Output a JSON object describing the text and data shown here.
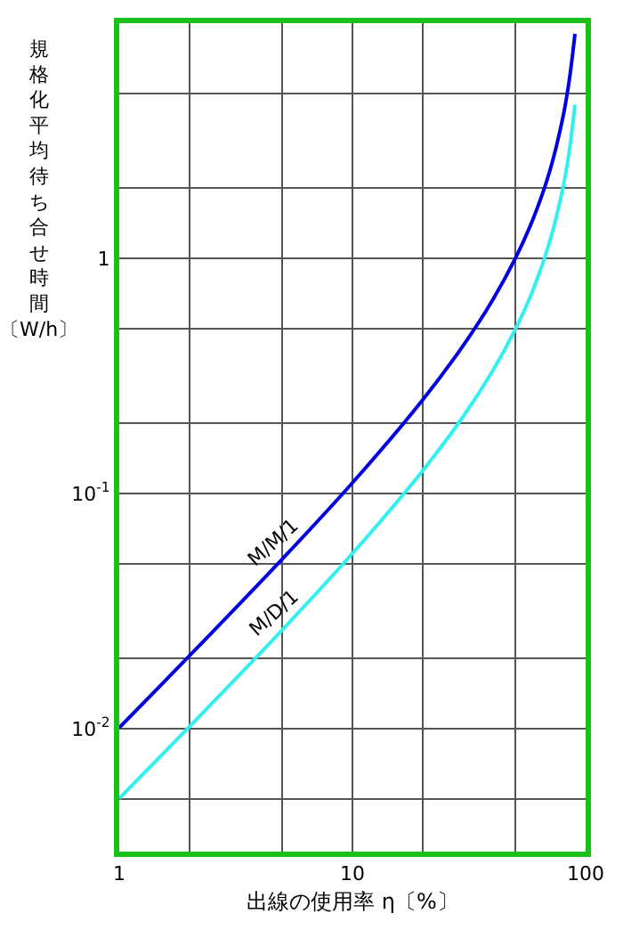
{
  "chart_data": {
    "type": "line",
    "xlabel": "出線の使用率 η〔%〕",
    "ylabel": "規格化平均待ち合せ時間〔W/h〕",
    "x": [
      1,
      2,
      5,
      10,
      20,
      30,
      40,
      50,
      60,
      70,
      80,
      85,
      90
    ],
    "series": [
      {
        "name": "M/M/1",
        "color": "#0000e0",
        "values": [
          0.0101,
          0.0204,
          0.0526,
          0.111,
          0.25,
          0.429,
          0.667,
          1.0,
          1.5,
          2.33,
          4.0,
          5.67,
          9.0
        ]
      },
      {
        "name": "M/D/1",
        "color": "#33f0f0",
        "values": [
          0.00505,
          0.0102,
          0.0263,
          0.0556,
          0.125,
          0.214,
          0.333,
          0.5,
          0.75,
          1.17,
          2.0,
          2.83,
          4.5
        ]
      }
    ],
    "log": "xy",
    "xlim": [
      1,
      100
    ],
    "ylim": [
      0.003,
      10
    ],
    "xticks": [
      1,
      {
        "value": 2,
        "label": null
      },
      {
        "value": 5,
        "label": null
      },
      10,
      {
        "value": 20,
        "label": null
      },
      {
        "value": 50,
        "label": null
      },
      100
    ],
    "yticks": [
      {
        "value": 0.005,
        "label": null
      },
      {
        "value": 0.01,
        "label": "10$^{-2}$"
      },
      {
        "value": 0.02,
        "label": null
      },
      {
        "value": 0.05,
        "label": null
      },
      {
        "value": 0.1,
        "label": "10$^{-1}$"
      },
      {
        "value": 0.2,
        "label": null
      },
      {
        "value": 0.5,
        "label": null
      },
      1,
      {
        "value": 2,
        "label": null
      },
      {
        "value": 5,
        "label": null
      }
    ],
    "grid": true,
    "legend": false,
    "line_style": "solid",
    "marker": "none"
  }
}
